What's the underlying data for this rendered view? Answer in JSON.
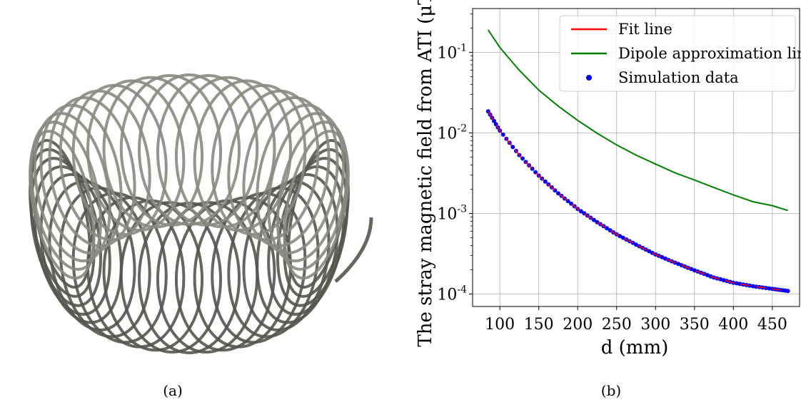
{
  "panels": {
    "a": {
      "caption": "(a)"
    },
    "b": {
      "caption": "(b)"
    }
  },
  "chart_data": {
    "type": "line",
    "title": "",
    "xlabel": "d (mm)",
    "ylabel": "The stray magnetic field from ATI (μT)",
    "xlim": [
      65,
      485
    ],
    "ylim": [
      7e-05,
      0.35
    ],
    "yscale": "log",
    "grid": true,
    "legend_position": "top-right",
    "xticks": [
      100,
      150,
      200,
      250,
      300,
      350,
      400,
      450
    ],
    "yticks": [
      {
        "value": 0.0001,
        "label": "10^-4"
      },
      {
        "value": 0.001,
        "label": "10^-3"
      },
      {
        "value": 0.01,
        "label": "10^-2"
      },
      {
        "value": 0.1,
        "label": "10^-1"
      }
    ],
    "series": [
      {
        "name": "Fit line",
        "kind": "line",
        "color": "#ff0000",
        "x": [
          85,
          100,
          125,
          150,
          175,
          200,
          225,
          250,
          275,
          300,
          325,
          350,
          375,
          400,
          425,
          450,
          470
        ],
        "y": [
          0.0185,
          0.0107,
          0.0053,
          0.00295,
          0.00178,
          0.00114,
          0.00078,
          0.00055,
          0.00041,
          0.00031,
          0.000245,
          0.000197,
          0.00016,
          0.000138,
          0.000125,
          0.000116,
          0.000109
        ]
      },
      {
        "name": "Dipole approximation line",
        "kind": "line",
        "color": "#008000",
        "x": [
          85,
          100,
          125,
          150,
          175,
          200,
          225,
          250,
          275,
          300,
          325,
          350,
          375,
          400,
          425,
          450,
          470
        ],
        "y": [
          0.19,
          0.115,
          0.06,
          0.034,
          0.0215,
          0.0143,
          0.0099,
          0.0071,
          0.0053,
          0.0041,
          0.0032,
          0.0026,
          0.0021,
          0.0017,
          0.0014,
          0.00125,
          0.00109
        ]
      },
      {
        "name": "Simulation data",
        "kind": "scatter",
        "color": "#0000ff",
        "x": [
          85,
          100,
          125,
          150,
          175,
          200,
          225,
          250,
          275,
          300,
          325,
          350,
          375,
          400,
          425,
          450,
          470
        ],
        "y": [
          0.0185,
          0.0107,
          0.0053,
          0.00295,
          0.00178,
          0.00114,
          0.00078,
          0.00055,
          0.00041,
          0.00031,
          0.000245,
          0.000197,
          0.00016,
          0.000138,
          0.000125,
          0.000116,
          0.000109
        ]
      }
    ]
  }
}
